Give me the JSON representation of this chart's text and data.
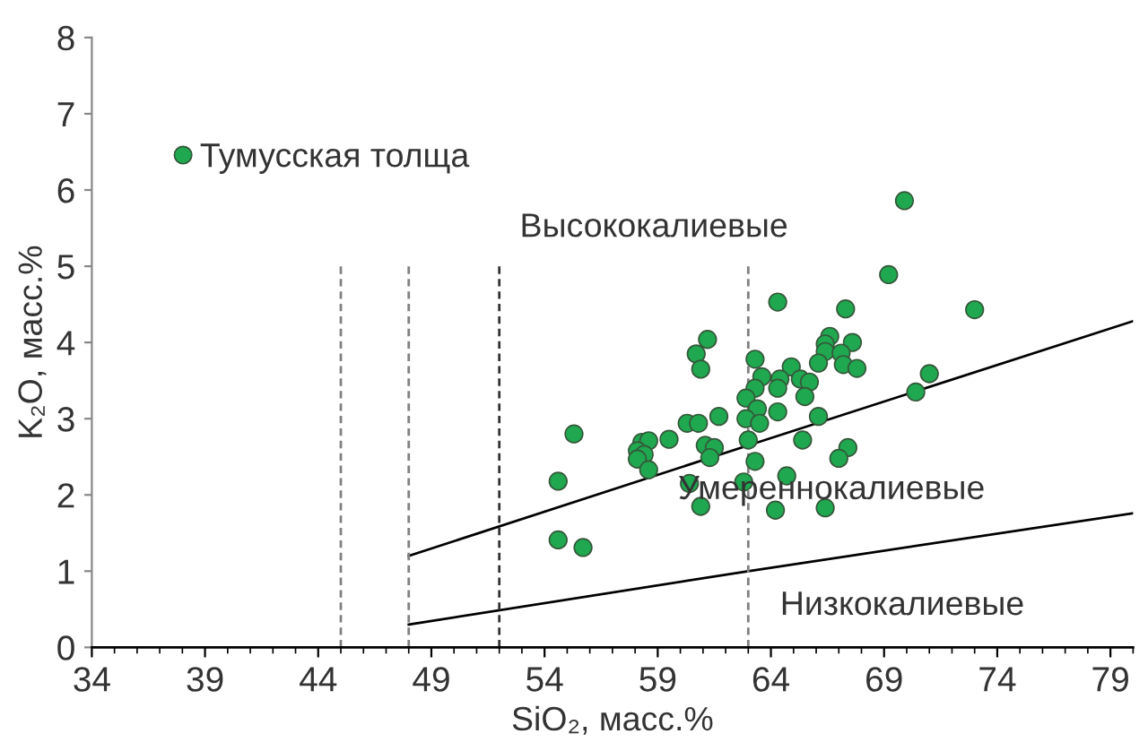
{
  "chart_data": {
    "type": "scatter",
    "xlabel": "SiO₂, масс.%",
    "ylabel": "K₂O, масс.%",
    "xlim": [
      34,
      80
    ],
    "xticks": [
      34,
      39,
      44,
      49,
      54,
      59,
      64,
      69,
      74,
      79
    ],
    "ylim": [
      0,
      8
    ],
    "yticks": [
      0,
      1,
      2,
      3,
      4,
      5,
      6,
      7,
      8
    ],
    "legend": "top left",
    "series": [
      {
        "name": "Тумусская толща",
        "marker": "circle",
        "color": "#1fa84f",
        "x": [
          69.9,
          69.2,
          73.0,
          64.3,
          67.3,
          61.2,
          60.7,
          60.9,
          66.6,
          66.4,
          67.6,
          66.4,
          67.1,
          66.1,
          67.2,
          67.8,
          63.3,
          64.9,
          63.6,
          64.4,
          65.3,
          65.7,
          64.3,
          63.3,
          71.0,
          70.4,
          62.9,
          63.4,
          64.3,
          65.5,
          61.7,
          60.3,
          60.8,
          62.9,
          63.5,
          66.1,
          55.3,
          58.3,
          58.6,
          59.5,
          58.1,
          58.4,
          58.1,
          58.6,
          61.1,
          61.5,
          61.3,
          63.0,
          65.4,
          63.3,
          67.4,
          67.0,
          54.6,
          60.4,
          62.8,
          64.7,
          60.9,
          64.2,
          66.4,
          54.6,
          55.7
        ],
        "values": [
          5.86,
          4.89,
          4.43,
          4.53,
          4.44,
          4.04,
          3.85,
          3.65,
          4.08,
          3.98,
          4.0,
          3.88,
          3.86,
          3.73,
          3.71,
          3.66,
          3.78,
          3.68,
          3.55,
          3.52,
          3.52,
          3.48,
          3.4,
          3.4,
          3.59,
          3.35,
          3.27,
          3.13,
          3.09,
          3.29,
          3.03,
          2.94,
          2.94,
          3.0,
          2.94,
          3.03,
          2.8,
          2.69,
          2.71,
          2.73,
          2.58,
          2.53,
          2.47,
          2.33,
          2.65,
          2.62,
          2.49,
          2.72,
          2.72,
          2.44,
          2.62,
          2.48,
          2.18,
          2.15,
          2.17,
          2.25,
          1.85,
          1.8,
          1.83,
          1.41,
          1.31
        ]
      },
      {
        "type": "line",
        "color": "#000000",
        "x": [
          48,
          63,
          80
        ],
        "values": [
          1.2,
          2.65,
          4.28
        ]
      },
      {
        "type": "line",
        "color": "#000000",
        "x": [
          48,
          63,
          80
        ],
        "values": [
          0.3,
          1.0,
          1.76
        ]
      },
      {
        "type": "line",
        "color": "#808080",
        "line_style": "dashed",
        "x": [
          45,
          45
        ],
        "values": [
          0,
          5
        ]
      },
      {
        "type": "line",
        "color": "#808080",
        "line_style": "dashed",
        "x": [
          48,
          48
        ],
        "values": [
          0,
          5
        ]
      },
      {
        "type": "line",
        "color": "#333333",
        "line_style": "dashed",
        "x": [
          52,
          52
        ],
        "values": [
          0,
          5
        ]
      },
      {
        "type": "line",
        "color": "#808080",
        "line_style": "dashed",
        "x": [
          63,
          63
        ],
        "values": [
          0,
          5
        ]
      }
    ],
    "annotations": [
      "Высококалиевые",
      "Умереннокалиевые",
      "Низкокалиевые"
    ]
  }
}
